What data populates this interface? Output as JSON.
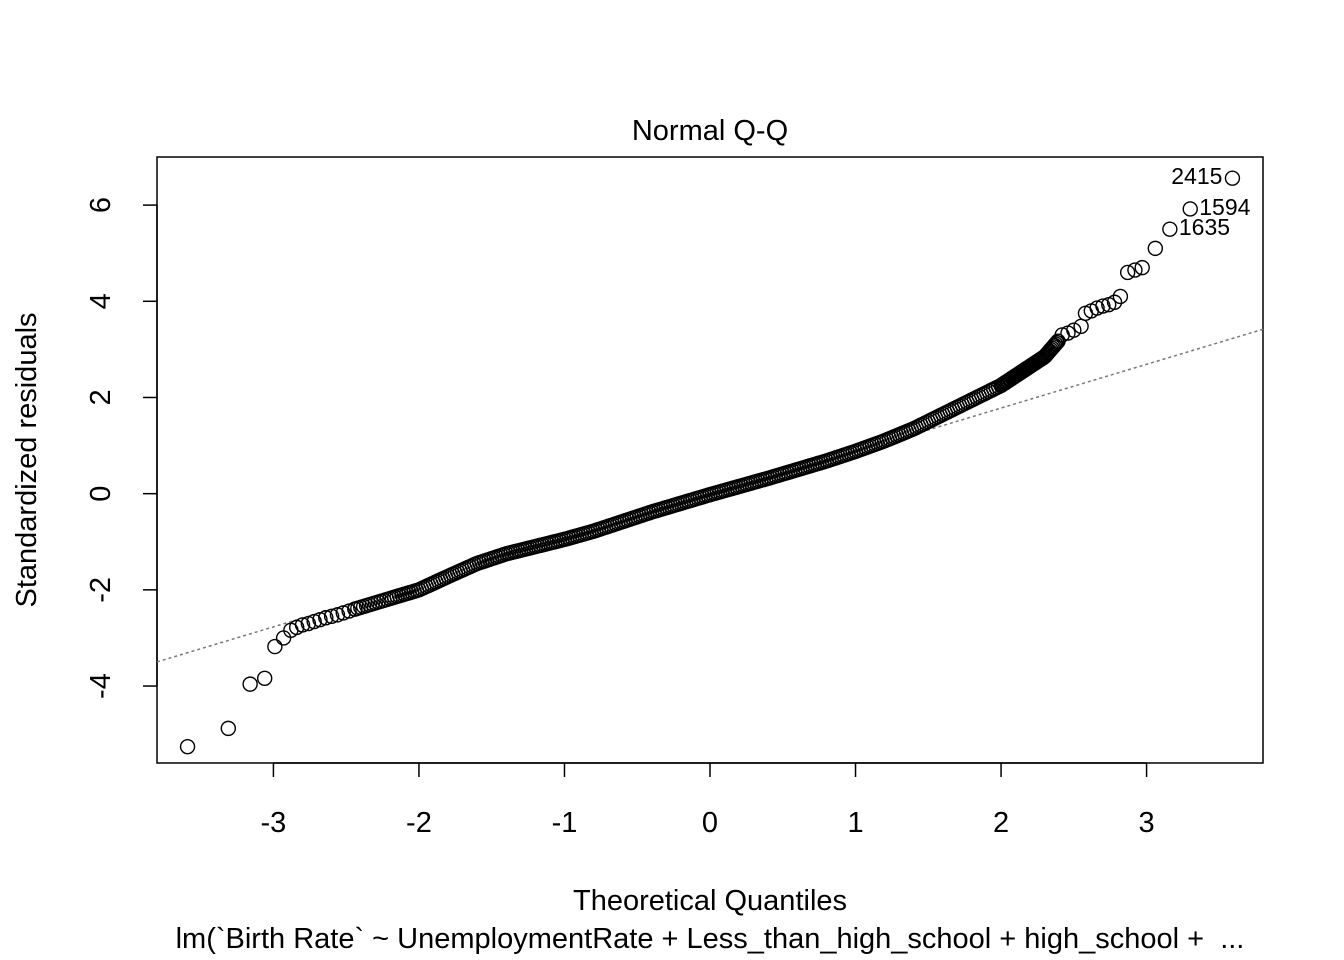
{
  "chart_data": {
    "type": "scatter",
    "title": "Normal Q-Q",
    "xlabel": "Theoretical Quantiles",
    "ylabel": "Standardized residuals",
    "subtitle": "lm(`Birth Rate` ~ UnemploymentRate + Less_than_high_school + high_school +  ...",
    "xlim": [
      -3.8,
      3.8
    ],
    "ylim": [
      -5.6,
      7.0
    ],
    "xticks": [
      -3,
      -2,
      -1,
      0,
      1,
      2,
      3
    ],
    "xtick_labels": [
      "-3",
      "-2",
      "-1",
      "0",
      "1",
      "2",
      "3"
    ],
    "yticks": [
      -4,
      -2,
      0,
      2,
      4,
      6
    ],
    "ytick_labels": [
      "-4",
      "-2",
      "0",
      "2",
      "4",
      "6"
    ],
    "grid": false,
    "reference_line": {
      "slope": 0.91,
      "intercept": -0.04,
      "style": "dotted",
      "color": "#777777"
    },
    "lower_tail": [
      {
        "x": -3.59,
        "y": -5.26
      },
      {
        "x": -3.31,
        "y": -4.88
      },
      {
        "x": -3.16,
        "y": -3.96
      },
      {
        "x": -3.06,
        "y": -3.84
      },
      {
        "x": -2.99,
        "y": -3.18
      },
      {
        "x": -2.93,
        "y": -3.0
      },
      {
        "x": -2.88,
        "y": -2.84
      },
      {
        "x": -2.84,
        "y": -2.78
      },
      {
        "x": -2.8,
        "y": -2.73
      },
      {
        "x": -2.76,
        "y": -2.7
      },
      {
        "x": -2.72,
        "y": -2.66
      },
      {
        "x": -2.68,
        "y": -2.62
      },
      {
        "x": -2.64,
        "y": -2.58
      },
      {
        "x": -2.6,
        "y": -2.55
      },
      {
        "x": -2.56,
        "y": -2.52
      },
      {
        "x": -2.52,
        "y": -2.48
      },
      {
        "x": -2.48,
        "y": -2.44
      },
      {
        "x": -2.44,
        "y": -2.4
      }
    ],
    "body_curve": [
      [
        -2.44,
        -2.4
      ],
      [
        -2.2,
        -2.18
      ],
      [
        -2.0,
        -2.0
      ],
      [
        -1.8,
        -1.72
      ],
      [
        -1.6,
        -1.45
      ],
      [
        -1.4,
        -1.25
      ],
      [
        -1.2,
        -1.1
      ],
      [
        -1.0,
        -0.95
      ],
      [
        -0.8,
        -0.78
      ],
      [
        -0.6,
        -0.58
      ],
      [
        -0.4,
        -0.38
      ],
      [
        -0.2,
        -0.2
      ],
      [
        0.0,
        -0.02
      ],
      [
        0.2,
        0.15
      ],
      [
        0.4,
        0.32
      ],
      [
        0.6,
        0.5
      ],
      [
        0.8,
        0.68
      ],
      [
        1.0,
        0.88
      ],
      [
        1.2,
        1.1
      ],
      [
        1.4,
        1.35
      ],
      [
        1.6,
        1.65
      ],
      [
        1.8,
        1.95
      ],
      [
        2.0,
        2.25
      ],
      [
        2.1,
        2.45
      ],
      [
        2.2,
        2.65
      ],
      [
        2.3,
        2.85
      ],
      [
        2.4,
        3.2
      ]
    ],
    "upper_tail": [
      {
        "x": 2.42,
        "y": 3.3
      },
      {
        "x": 2.46,
        "y": 3.34
      },
      {
        "x": 2.5,
        "y": 3.4
      },
      {
        "x": 2.55,
        "y": 3.48
      },
      {
        "x": 2.58,
        "y": 3.75
      },
      {
        "x": 2.62,
        "y": 3.8
      },
      {
        "x": 2.66,
        "y": 3.86
      },
      {
        "x": 2.7,
        "y": 3.9
      },
      {
        "x": 2.74,
        "y": 3.93
      },
      {
        "x": 2.78,
        "y": 3.98
      },
      {
        "x": 2.82,
        "y": 4.1
      },
      {
        "x": 2.87,
        "y": 4.6
      },
      {
        "x": 2.92,
        "y": 4.65
      },
      {
        "x": 2.97,
        "y": 4.7
      },
      {
        "x": 3.06,
        "y": 5.1
      },
      {
        "x": 3.16,
        "y": 5.5
      },
      {
        "x": 3.3,
        "y": 5.92
      },
      {
        "x": 3.59,
        "y": 6.56
      }
    ],
    "annotations": [
      {
        "label": "2415",
        "x": 3.59,
        "y": 6.56,
        "side": "left"
      },
      {
        "label": "1594",
        "x": 3.3,
        "y": 5.92,
        "side": "right"
      },
      {
        "label": "1635",
        "x": 3.16,
        "y": 5.5,
        "side": "right"
      }
    ]
  }
}
